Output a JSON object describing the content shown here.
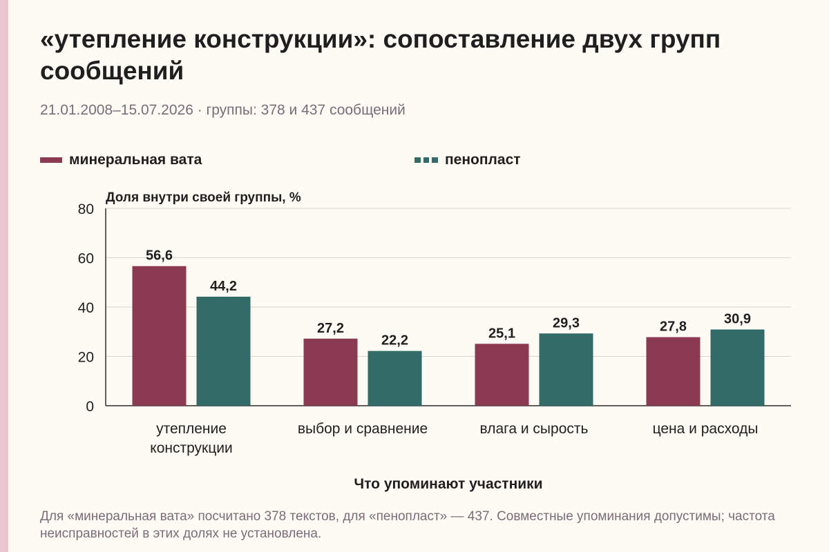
{
  "title": "«утепление конструкции»: сопоставление двух групп сообщений",
  "subtitle": "21.01.2008–15.07.2026 · группы: 378 и 437 сообщений",
  "footnote": "Для «минеральная вата» посчитано 378 текстов, для «пенопласт» — 437. Совместные упоминания допустимы; частота неисправностей в этих долях не установлена.",
  "colors": {
    "series_a": "#8c3a52",
    "series_b": "#336b68",
    "grid": "#d9d6cc",
    "axis": "#2a2a2a"
  },
  "chart_data": {
    "type": "bar",
    "ylabel": "Доля внутри своей группы, %",
    "xlabel": "Что упоминают участники",
    "categories": [
      "утепление конструкции",
      "выбор и сравнение",
      "влага и сырость",
      "цена и расходы"
    ],
    "series": [
      {
        "name": "минеральная вата",
        "values": [
          56.6,
          27.2,
          25.1,
          27.8
        ],
        "labels": [
          "56,6",
          "27,2",
          "25,1",
          "27,8"
        ]
      },
      {
        "name": "пенопласт",
        "values": [
          44.2,
          22.2,
          29.3,
          30.9
        ],
        "labels": [
          "44,2",
          "22,2",
          "29,3",
          "30,9"
        ]
      }
    ],
    "ylim": [
      0,
      80
    ],
    "yticks": [
      0,
      20,
      40,
      60,
      80
    ],
    "grid": true,
    "legend_position": "top"
  }
}
